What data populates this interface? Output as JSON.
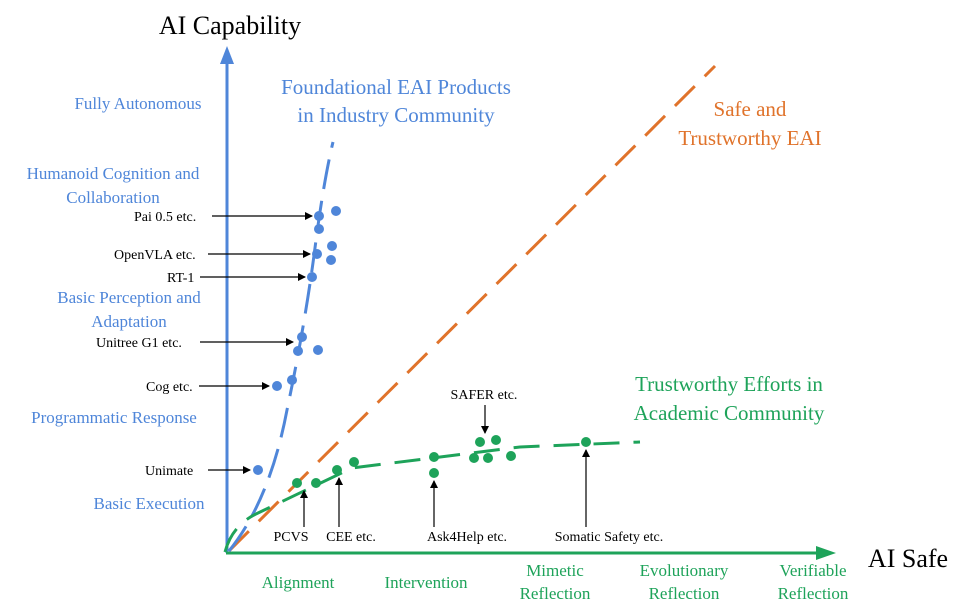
{
  "axes": {
    "y_title": "AI Capability",
    "x_title": "AI Safe"
  },
  "capability_levels": [
    "Fully Autonomous",
    [
      "Humanoid Cognition and",
      "Collaboration"
    ],
    [
      "Basic Perception and",
      "Adaptation"
    ],
    "Programmatic Response",
    "Basic Execution"
  ],
  "safety_levels": [
    "Alignment",
    "Intervention",
    [
      "Mimetic",
      "Reflection"
    ],
    [
      "Evolutionary",
      "Reflection"
    ],
    [
      "Verifiable",
      "Reflection"
    ]
  ],
  "series": {
    "industry": {
      "title_line1": "Foundational EAI Products",
      "title_line2": "in Industry Community",
      "color": "#4f86d9"
    },
    "ideal": {
      "title_line1": "Safe and",
      "title_line2": "Trustworthy EAI",
      "color": "#e0732b"
    },
    "academic": {
      "title_line1": "Trustworthy Efforts in",
      "title_line2": "Academic Community",
      "color": "#1ea35a"
    }
  },
  "industry_products": [
    "Pai 0.5 etc.",
    "OpenVLA etc.",
    "RT-1",
    "Unitree G1 etc.",
    "Cog etc.",
    "Unimate"
  ],
  "academic_works": [
    "PCVS",
    "CEE etc.",
    "Ask4Help etc.",
    "SAFER etc.",
    "Somatic Safety etc."
  ]
}
